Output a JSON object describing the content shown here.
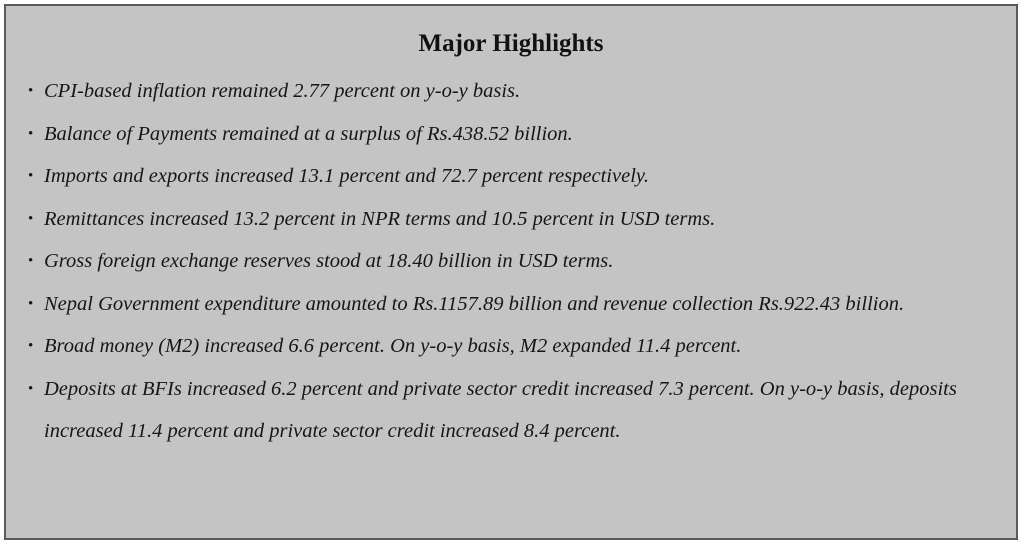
{
  "title": "Major Highlights",
  "highlights": [
    "CPI-based inflation remained 2.77 percent on y-o-y basis.",
    "Balance of Payments remained at a surplus of Rs.438.52 billion.",
    "Imports and exports increased 13.1 percent and 72.7 percent respectively.",
    "Remittances increased 13.2 percent in NPR terms and 10.5 percent in USD terms.",
    "Gross foreign exchange reserves stood at 18.40 billion in USD terms.",
    "Nepal Government expenditure amounted to Rs.1157.89 billion and revenue collection Rs.922.43 billion.",
    "Broad money (M2) increased 6.6 percent. On y-o-y basis, M2 expanded 11.4 percent.",
    "Deposits at BFIs increased 6.2 percent and private sector credit increased 7.3 percent. On y-o-y basis, deposits increased 11.4 percent and private sector credit increased 8.4 percent."
  ]
}
